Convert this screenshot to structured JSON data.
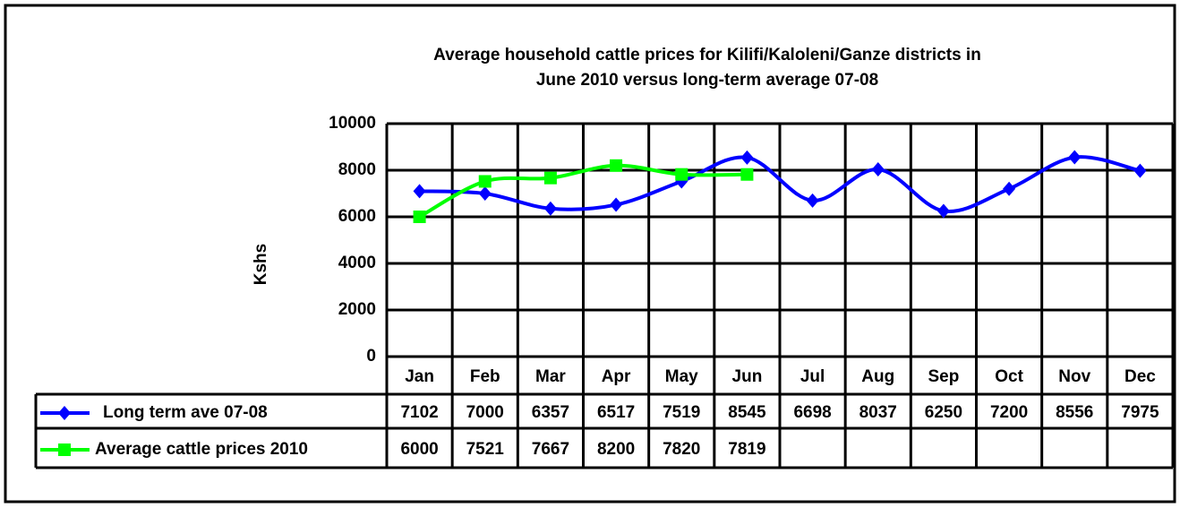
{
  "chart_data": {
    "type": "line",
    "title": [
      "Average household cattle prices for Kilifi/Kaloleni/Ganze districts in",
      "June 2010 versus long-term average 07-08"
    ],
    "y_label": "Kshs",
    "categories": [
      "Jan",
      "Feb",
      "Mar",
      "Apr",
      "May",
      "Jun",
      "Jul",
      "Aug",
      "Sep",
      "Oct",
      "Nov",
      "Dec"
    ],
    "series": [
      {
        "name": "Long term ave 07-08",
        "color": "#0000ff",
        "marker": "diamond",
        "values": [
          7102,
          7000,
          6357,
          6517,
          7519,
          8545,
          6698,
          8037,
          6250,
          7200,
          8556,
          7975
        ]
      },
      {
        "name": "Average cattle prices 2010",
        "color": "#00ff00",
        "marker": "square",
        "values": [
          6000,
          7521,
          7667,
          8200,
          7820,
          7819,
          null,
          null,
          null,
          null,
          null,
          null
        ]
      }
    ],
    "ylim": [
      0,
      10000
    ],
    "yticks": [
      0,
      2000,
      4000,
      6000,
      8000,
      10000
    ],
    "grid": true,
    "smooth": true
  }
}
